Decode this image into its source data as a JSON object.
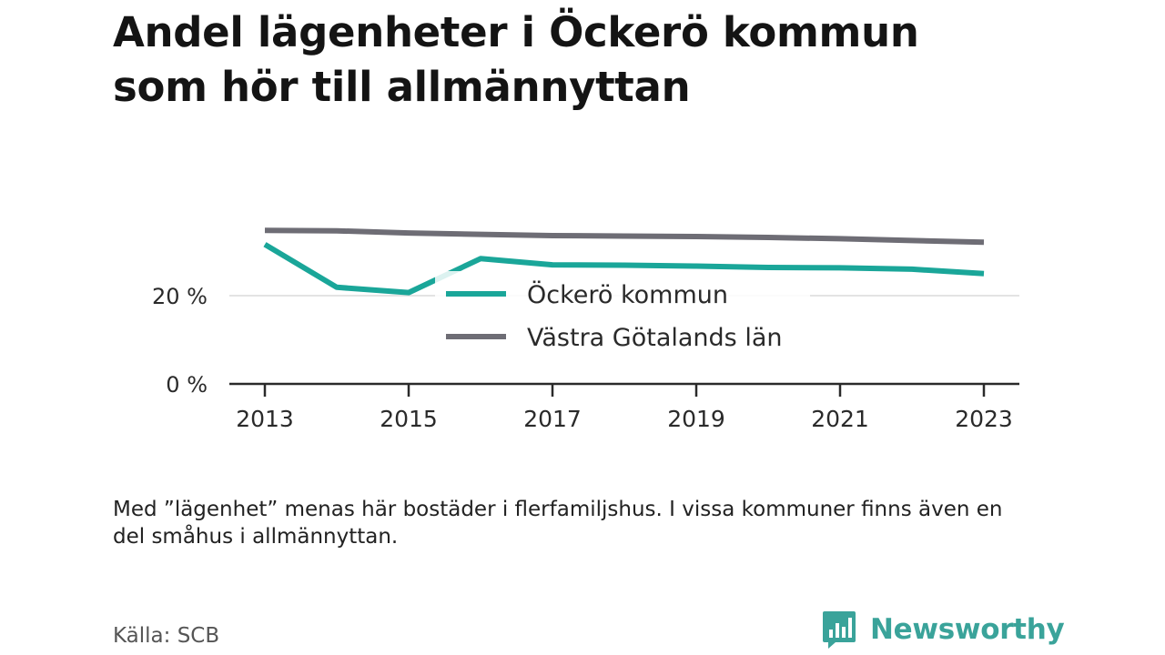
{
  "title_lines": [
    "Andel lägenheter i Öckerö kommun",
    "som hör till allmännyttan"
  ],
  "note": "Med ”lägenhet” menas här bostäder i flerfamiljshus. I vissa kommuner finns även en del småhus i allmännyttan.",
  "source": "Källa: SCB",
  "brand": {
    "name": "Newsworthy",
    "color": "#3aa39a",
    "icon": "newsworthy-logo-icon"
  },
  "chart_data": {
    "type": "line",
    "title": "Andel lägenheter i Öckerö kommun som hör till allmännyttan",
    "xlabel": "",
    "ylabel": "",
    "x": [
      2013,
      2014,
      2015,
      2016,
      2017,
      2018,
      2019,
      2020,
      2021,
      2022,
      2023
    ],
    "x_ticks": [
      "2013",
      "2015",
      "2017",
      "2019",
      "2021",
      "2023"
    ],
    "y_ticks": [
      "0 %",
      "20 %"
    ],
    "ylim": [
      0,
      40
    ],
    "grid": true,
    "legend": "center-right",
    "series": [
      {
        "name": "Öckerö kommun",
        "color": "#1aa699",
        "values": [
          31.6,
          21.9,
          20.7,
          28.4,
          27.0,
          26.9,
          26.7,
          26.4,
          26.3,
          26.0,
          25.0
        ]
      },
      {
        "name": "Västra Götalands län",
        "color": "#6e6d75",
        "values": [
          34.8,
          34.7,
          34.2,
          33.9,
          33.6,
          33.5,
          33.4,
          33.2,
          32.9,
          32.5,
          32.1
        ]
      }
    ]
  }
}
